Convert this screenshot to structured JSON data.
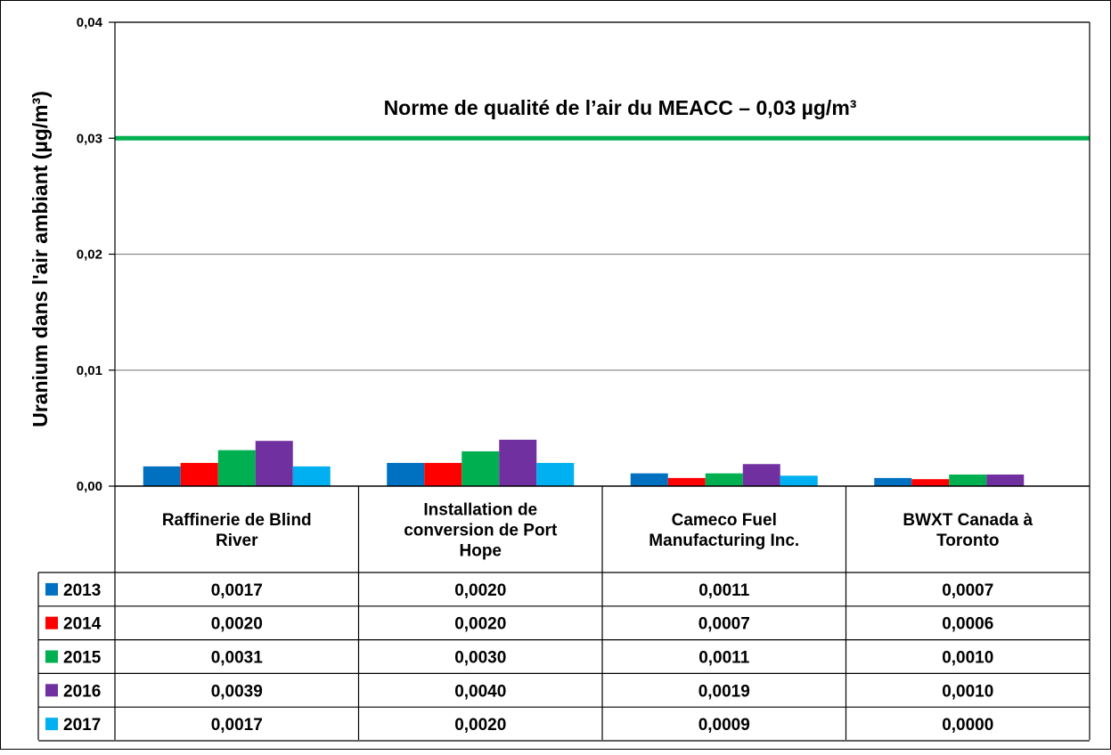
{
  "chart_data": {
    "type": "bar",
    "ylabel": "Uranium dans l'air ambiant (µg/m³)",
    "ylim": [
      0,
      0.04
    ],
    "yticks": [
      "0,00",
      "0,01",
      "0,02",
      "0,03",
      "0,04"
    ],
    "ytick_values": [
      0,
      0.01,
      0.02,
      0.03,
      0.04
    ],
    "grid": true,
    "categories": [
      [
        "Raffinerie de Blind",
        "River"
      ],
      [
        "Installation de",
        "conversion de Port",
        "Hope"
      ],
      [
        "Cameco Fuel",
        "Manufacturing Inc."
      ],
      [
        "BWXT Canada à",
        "Toronto"
      ]
    ],
    "series": [
      {
        "name": "2013",
        "color": "#0070C0",
        "values": [
          0.0017,
          0.002,
          0.0011,
          0.0007
        ],
        "labels": [
          "0,0017",
          "0,0020",
          "0,0011",
          "0,0007"
        ]
      },
      {
        "name": "2014",
        "color": "#FF0000",
        "values": [
          0.002,
          0.002,
          0.0007,
          0.0006
        ],
        "labels": [
          "0,0020",
          "0,0020",
          "0,0007",
          "0,0006"
        ]
      },
      {
        "name": "2015",
        "color": "#00B050",
        "values": [
          0.0031,
          0.003,
          0.0011,
          0.001
        ],
        "labels": [
          "0,0031",
          "0,0030",
          "0,0011",
          "0,0010"
        ]
      },
      {
        "name": "2016",
        "color": "#7030A0",
        "values": [
          0.0039,
          0.004,
          0.0019,
          0.001
        ],
        "labels": [
          "0,0039",
          "0,0040",
          "0,0019",
          "0,0010"
        ]
      },
      {
        "name": "2017",
        "color": "#00B0F0",
        "values": [
          0.0017,
          0.002,
          0.0009,
          0.0
        ],
        "labels": [
          "0,0017",
          "0,0020",
          "0,0009",
          "0,0000"
        ]
      }
    ],
    "reference_line": {
      "value": 0.03,
      "color": "#00B050",
      "label": "Norme de qualité de l’air du MEACC – 0,03 µg/m³"
    }
  }
}
